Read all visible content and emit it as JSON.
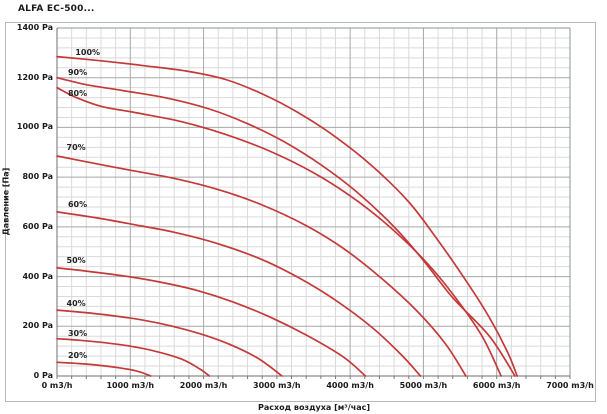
{
  "title": "ALFA EC-500...",
  "chart_data": {
    "type": "line",
    "title": "ALFA EC-500...",
    "xlabel": "Расход воздуха [м³/час]",
    "ylabel": "Давление [Па]",
    "xlim": [
      0,
      7000
    ],
    "ylim": [
      0,
      1400
    ],
    "x_major_step": 1000,
    "x_minor_step": 200,
    "y_major_step": 200,
    "y_minor_step": 40,
    "grid": true,
    "legend_position": "none",
    "x_tick_labels": [
      "0 m3/h",
      "1000 m3/h",
      "2000 m3/h",
      "3000 m3/h",
      "4000 m3/h",
      "5000 m3/h",
      "6000 m3/h",
      "7000 m3/h"
    ],
    "x_tick_values": [
      0,
      1000,
      2000,
      3000,
      4000,
      5000,
      6000,
      7000
    ],
    "y_tick_labels": [
      "1400 Pa",
      "1200 Pa",
      "1000 Pa",
      "800 Pa",
      "600 Pa",
      "400 Pa",
      "200 Pa",
      "0 Pa"
    ],
    "y_tick_values": [
      1400,
      1200,
      1000,
      800,
      600,
      400,
      200,
      0
    ],
    "series_color": "#c43a3a",
    "major_grid_color": "#a8a8a8",
    "minor_grid_color": "#dadada",
    "frame_color": "#8f9498",
    "series": [
      {
        "name": "20%",
        "label_at": [
          150,
          85
        ],
        "points": [
          [
            0,
            55
          ],
          [
            250,
            51
          ],
          [
            550,
            44
          ],
          [
            850,
            33
          ],
          [
            1100,
            19
          ],
          [
            1280,
            0
          ]
        ]
      },
      {
        "name": "30%",
        "label_at": [
          150,
          175
        ],
        "points": [
          [
            0,
            150
          ],
          [
            300,
            144
          ],
          [
            650,
            134
          ],
          [
            1000,
            120
          ],
          [
            1350,
            99
          ],
          [
            1700,
            68
          ],
          [
            1950,
            28
          ],
          [
            2080,
            0
          ]
        ]
      },
      {
        "name": "40%",
        "label_at": [
          130,
          292
        ],
        "points": [
          [
            0,
            265
          ],
          [
            350,
            256
          ],
          [
            750,
            243
          ],
          [
            1150,
            226
          ],
          [
            1550,
            202
          ],
          [
            1950,
            170
          ],
          [
            2350,
            128
          ],
          [
            2750,
            70
          ],
          [
            3070,
            0
          ]
        ]
      },
      {
        "name": "50%",
        "label_at": [
          130,
          465
        ],
        "points": [
          [
            0,
            435
          ],
          [
            400,
            422
          ],
          [
            900,
            403
          ],
          [
            1400,
            378
          ],
          [
            1900,
            345
          ],
          [
            2400,
            298
          ],
          [
            2900,
            238
          ],
          [
            3400,
            165
          ],
          [
            3900,
            78
          ],
          [
            4210,
            0
          ]
        ]
      },
      {
        "name": "60%",
        "label_at": [
          150,
          690
        ],
        "points": [
          [
            0,
            660
          ],
          [
            500,
            638
          ],
          [
            1000,
            612
          ],
          [
            1600,
            578
          ],
          [
            2200,
            532
          ],
          [
            2800,
            468
          ],
          [
            3300,
            395
          ],
          [
            3800,
            305
          ],
          [
            4300,
            195
          ],
          [
            4700,
            85
          ],
          [
            4960,
            0
          ]
        ]
      },
      {
        "name": "70%",
        "label_at": [
          130,
          920
        ],
        "points": [
          [
            0,
            885
          ],
          [
            500,
            856
          ],
          [
            1000,
            828
          ],
          [
            1600,
            795
          ],
          [
            2200,
            750
          ],
          [
            2800,
            688
          ],
          [
            3400,
            605
          ],
          [
            3900,
            515
          ],
          [
            4400,
            400
          ],
          [
            4900,
            265
          ],
          [
            5300,
            130
          ],
          [
            5580,
            0
          ]
        ]
      },
      {
        "name": "80%",
        "label_at": [
          150,
          1140
        ],
        "points": [
          [
            0,
            1160
          ],
          [
            250,
            1122
          ],
          [
            600,
            1085
          ],
          [
            1100,
            1058
          ],
          [
            1700,
            1023
          ],
          [
            2300,
            972
          ],
          [
            2900,
            905
          ],
          [
            3500,
            818
          ],
          [
            4000,
            725
          ],
          [
            4500,
            610
          ],
          [
            5000,
            470
          ],
          [
            5400,
            330
          ],
          [
            5800,
            160
          ],
          [
            6060,
            0
          ]
        ]
      },
      {
        "name": "90%",
        "label_at": [
          150,
          1222
        ],
        "points": [
          [
            0,
            1200
          ],
          [
            400,
            1172
          ],
          [
            900,
            1148
          ],
          [
            1500,
            1118
          ],
          [
            2100,
            1072
          ],
          [
            2600,
            1015
          ],
          [
            3100,
            942
          ],
          [
            3600,
            850
          ],
          [
            4100,
            738
          ],
          [
            4600,
            600
          ],
          [
            5000,
            465
          ],
          [
            5400,
            315
          ],
          [
            5900,
            160
          ],
          [
            6250,
            0
          ]
        ]
      },
      {
        "name": "100%",
        "label_at": [
          250,
          1305
        ],
        "points": [
          [
            0,
            1285
          ],
          [
            600,
            1268
          ],
          [
            1200,
            1248
          ],
          [
            1800,
            1225
          ],
          [
            2300,
            1193
          ],
          [
            2800,
            1135
          ],
          [
            3300,
            1058
          ],
          [
            3800,
            962
          ],
          [
            4300,
            845
          ],
          [
            4800,
            700
          ],
          [
            5200,
            545
          ],
          [
            5600,
            375
          ],
          [
            5900,
            235
          ],
          [
            6150,
            95
          ],
          [
            6280,
            0
          ]
        ]
      }
    ]
  }
}
